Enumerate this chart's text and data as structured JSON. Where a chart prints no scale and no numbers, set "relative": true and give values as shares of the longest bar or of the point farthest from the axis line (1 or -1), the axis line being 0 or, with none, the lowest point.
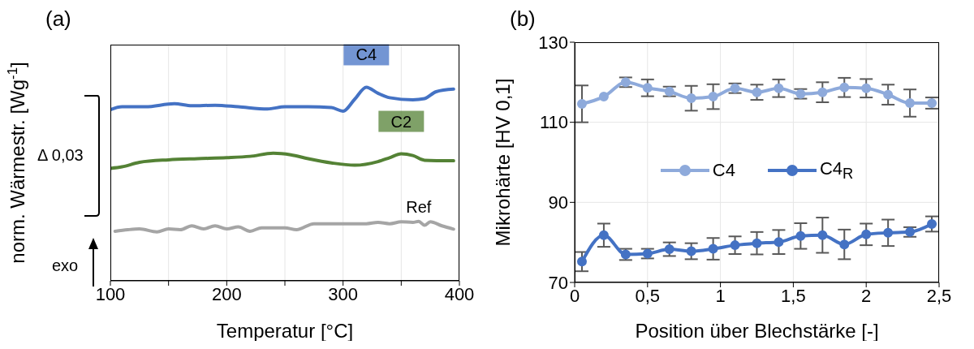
{
  "chart_data": [
    {
      "type": "line",
      "title": "(a)",
      "xlabel": "Temperatur [°C]",
      "ylabel": "norm. Wärmestr. [Wg$^{-1}$]",
      "relative": true,
      "xlim": [
        100,
        400
      ],
      "xticks": [
        100,
        {
          "value": 150,
          "label": null
        },
        200,
        {
          "value": 250,
          "label": null
        },
        300,
        {
          "value": 350,
          "label": null
        },
        400
      ],
      "grid": "x",
      "marker": "none",
      "annotations": [
        "Δ 0,03",
        "exo"
      ],
      "series": [
        {
          "name": "C4",
          "color": "#4472c4",
          "x": [
            100,
            110,
            130,
            155,
            170,
            190,
            210,
            235,
            250,
            270,
            290,
            300,
            310,
            320,
            330,
            340,
            360,
            370,
            380,
            395
          ],
          "values": [
            0.884,
            0.899,
            0.899,
            0.915,
            0.904,
            0.907,
            0.899,
            0.888,
            0.899,
            0.899,
            0.895,
            0.876,
            0.938,
            1.0,
            0.969,
            0.946,
            0.935,
            0.941,
            0.977,
            0.99
          ]
        },
        {
          "name": "C2",
          "color": "#548235",
          "x": [
            100,
            110,
            125,
            150,
            175,
            200,
            220,
            240,
            255,
            270,
            290,
            310,
            330,
            340,
            350,
            360,
            370,
            395
          ],
          "values": [
            0.581,
            0.589,
            0.612,
            0.625,
            0.631,
            0.636,
            0.643,
            0.659,
            0.651,
            0.631,
            0.609,
            0.597,
            0.616,
            0.636,
            0.656,
            0.647,
            0.623,
            0.62
          ]
        },
        {
          "name": "Ref",
          "color": "#a5a5a5",
          "x": [
            104,
            115,
            125,
            140,
            150,
            160,
            170,
            180,
            190,
            200,
            210,
            220,
            230,
            250,
            260,
            275,
            290,
            300,
            320,
            330,
            340,
            350,
            360,
            365,
            370,
            375,
            385,
            395
          ],
          "values": [
            0.256,
            0.264,
            0.268,
            0.253,
            0.268,
            0.264,
            0.284,
            0.268,
            0.284,
            0.268,
            0.279,
            0.256,
            0.274,
            0.274,
            0.264,
            0.295,
            0.295,
            0.295,
            0.295,
            0.302,
            0.295,
            0.305,
            0.302,
            0.307,
            0.287,
            0.305,
            0.284,
            0.267
          ]
        }
      ]
    },
    {
      "type": "line",
      "title": "(b)",
      "xlabel": "Position über Blechstärke [-]",
      "ylabel": "Mikrohärte [HV 0,1]",
      "xlim": [
        0,
        2.5
      ],
      "xticks": [
        0,
        {
          "value": 0.5,
          "label": "0,5"
        },
        1,
        {
          "value": 1.5,
          "label": "1,5"
        },
        2,
        {
          "value": 2.5,
          "label": "2,5"
        }
      ],
      "ylim": [
        70,
        130
      ],
      "yticks": [
        70,
        90,
        110,
        130
      ],
      "grid": true,
      "legend": "center",
      "marker": "circle",
      "x": [
        0.05,
        0.2,
        0.35,
        0.5,
        0.65,
        0.8,
        0.95,
        1.1,
        1.25,
        1.4,
        1.55,
        1.7,
        1.85,
        2.0,
        2.15,
        2.3,
        2.45
      ],
      "series": [
        {
          "name": "C4",
          "color": "#8eaadb",
          "values": [
            114.6,
            116.4,
            120.0,
            118.6,
            117.7,
            116.0,
            116.4,
            118.5,
            117.5,
            118.5,
            117.1,
            117.5,
            118.7,
            118.5,
            116.9,
            114.8,
            114.8
          ],
          "errors": [
            4.6,
            null,
            1.2,
            2.1,
            1.2,
            3.1,
            3.1,
            1.2,
            1.9,
            2.2,
            1.2,
            2.5,
            2.4,
            2.3,
            2.5,
            3.4,
            1.4
          ]
        },
        {
          "name": "C4$_{R}$",
          "color": "#4472c4",
          "values": [
            75.2,
            81.8,
            77.0,
            77.2,
            78.3,
            77.8,
            78.4,
            79.3,
            79.8,
            80.1,
            81.6,
            81.8,
            79.5,
            82.0,
            82.4,
            82.6,
            84.6
          ],
          "errors": [
            2.4,
            2.9,
            1.4,
            1.2,
            1.7,
            2.0,
            2.7,
            2.2,
            2.8,
            3.0,
            3.2,
            4.4,
            3.7,
            2.7,
            3.3,
            1.2,
            1.9
          ]
        }
      ]
    }
  ]
}
